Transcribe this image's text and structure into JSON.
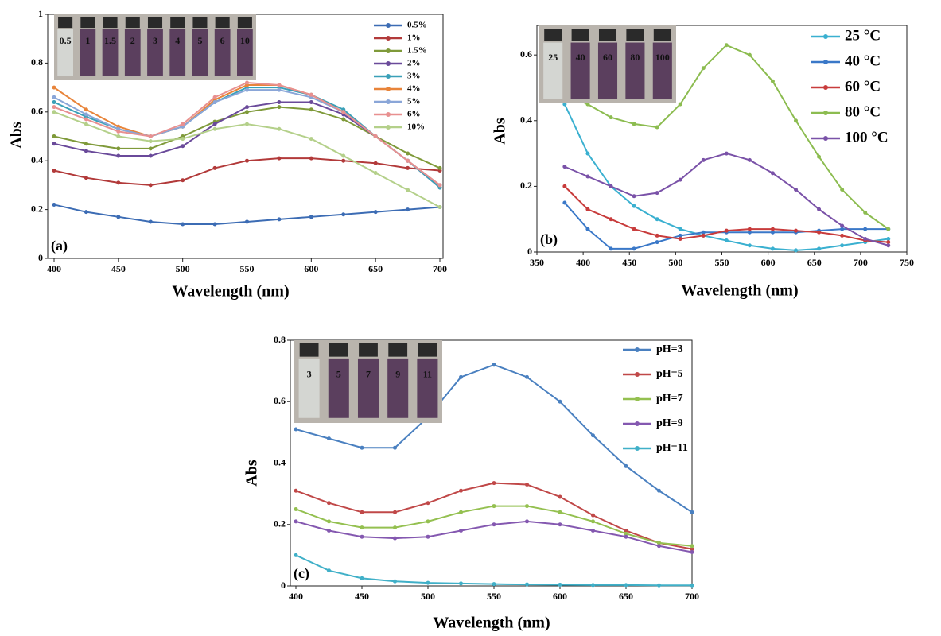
{
  "chart_data": [
    {
      "type": "line",
      "panel_label": "(a)",
      "x_label": "Wavelength (nm)",
      "y_label": "Abs",
      "inset_labels": [
        "0.5",
        "1",
        "1.5",
        "2",
        "3",
        "4",
        "5",
        "6",
        "10"
      ],
      "x": [
        400,
        425,
        450,
        475,
        500,
        525,
        550,
        575,
        600,
        625,
        650,
        675,
        700
      ],
      "xlim": [
        400,
        700
      ],
      "xticks": [
        400,
        450,
        500,
        550,
        600,
        650,
        700
      ],
      "ylim": [
        0,
        1
      ],
      "yticks": [
        0,
        0.2,
        0.4,
        0.6,
        0.8,
        1
      ],
      "series": [
        {
          "name": "0.5%",
          "color": "#3c6cb4",
          "values": [
            0.22,
            0.19,
            0.17,
            0.15,
            0.14,
            0.14,
            0.15,
            0.16,
            0.17,
            0.18,
            0.19,
            0.2,
            0.21
          ]
        },
        {
          "name": "1%",
          "color": "#b23a3a",
          "values": [
            0.36,
            0.33,
            0.31,
            0.3,
            0.32,
            0.37,
            0.4,
            0.41,
            0.41,
            0.4,
            0.39,
            0.37,
            0.36
          ]
        },
        {
          "name": "1.5%",
          "color": "#7f9a3a",
          "values": [
            0.5,
            0.47,
            0.45,
            0.45,
            0.5,
            0.56,
            0.6,
            0.62,
            0.61,
            0.57,
            0.5,
            0.43,
            0.37
          ]
        },
        {
          "name": "2%",
          "color": "#6a4a9a",
          "values": [
            0.47,
            0.44,
            0.42,
            0.42,
            0.46,
            0.55,
            0.62,
            0.64,
            0.64,
            0.59,
            0.5,
            0.4,
            0.29
          ]
        },
        {
          "name": "3%",
          "color": "#3aa0b8",
          "values": [
            0.64,
            0.58,
            0.53,
            0.5,
            0.54,
            0.64,
            0.7,
            0.7,
            0.67,
            0.61,
            0.5,
            0.4,
            0.29
          ]
        },
        {
          "name": "4%",
          "color": "#e8843a",
          "values": [
            0.7,
            0.61,
            0.54,
            0.5,
            0.54,
            0.65,
            0.71,
            0.71,
            0.67,
            0.6,
            0.5,
            0.4,
            0.3
          ]
        },
        {
          "name": "5%",
          "color": "#8aa6d8",
          "values": [
            0.66,
            0.59,
            0.53,
            0.5,
            0.54,
            0.64,
            0.69,
            0.69,
            0.66,
            0.6,
            0.5,
            0.4,
            0.3
          ]
        },
        {
          "name": "6%",
          "color": "#e89090",
          "values": [
            0.62,
            0.57,
            0.52,
            0.5,
            0.55,
            0.66,
            0.72,
            0.71,
            0.67,
            0.6,
            0.5,
            0.4,
            0.3
          ]
        },
        {
          "name": "10%",
          "color": "#b4d08a",
          "values": [
            0.6,
            0.55,
            0.5,
            0.48,
            0.49,
            0.53,
            0.55,
            0.53,
            0.49,
            0.42,
            0.35,
            0.28,
            0.21
          ]
        }
      ]
    },
    {
      "type": "line",
      "panel_label": "(b)",
      "x_label": "Wavelength (nm)",
      "y_label": "Abs",
      "inset_labels": [
        "25",
        "40",
        "60",
        "80",
        "100"
      ],
      "x": [
        380,
        405,
        430,
        455,
        480,
        505,
        530,
        555,
        580,
        605,
        630,
        655,
        680,
        705,
        730
      ],
      "xlim": [
        350,
        750
      ],
      "xticks": [
        350,
        400,
        450,
        500,
        550,
        600,
        650,
        700,
        750
      ],
      "ylim": [
        0,
        0.69
      ],
      "yticks": [
        0,
        0.2,
        0.4,
        0.6
      ],
      "series": [
        {
          "name": "25 °C",
          "color": "#3ab0d0",
          "values": [
            0.45,
            0.3,
            0.2,
            0.14,
            0.1,
            0.07,
            0.05,
            0.035,
            0.02,
            0.01,
            0.005,
            0.01,
            0.02,
            0.03,
            0.04
          ]
        },
        {
          "name": "40 °C",
          "color": "#3a78c8",
          "values": [
            0.15,
            0.07,
            0.01,
            0.01,
            0.03,
            0.05,
            0.06,
            0.06,
            0.06,
            0.06,
            0.06,
            0.065,
            0.07,
            0.07,
            0.07
          ]
        },
        {
          "name": "60 °C",
          "color": "#c83c3c",
          "values": [
            0.2,
            0.13,
            0.1,
            0.07,
            0.05,
            0.04,
            0.05,
            0.065,
            0.07,
            0.07,
            0.065,
            0.06,
            0.05,
            0.035,
            0.03
          ]
        },
        {
          "name": "80 °C",
          "color": "#8cbc50",
          "values": [
            0.48,
            0.45,
            0.41,
            0.39,
            0.38,
            0.45,
            0.56,
            0.63,
            0.6,
            0.52,
            0.4,
            0.29,
            0.19,
            0.12,
            0.07
          ]
        },
        {
          "name": "100 °C",
          "color": "#7a52a8",
          "values": [
            0.26,
            0.23,
            0.2,
            0.17,
            0.18,
            0.22,
            0.28,
            0.3,
            0.28,
            0.24,
            0.19,
            0.13,
            0.08,
            0.04,
            0.02
          ]
        }
      ]
    },
    {
      "type": "line",
      "panel_label": "(c)",
      "x_label": "Wavelength (nm)",
      "y_label": "Abs",
      "inset_labels": [
        "3",
        "5",
        "7",
        "9",
        "11"
      ],
      "x": [
        400,
        425,
        450,
        475,
        500,
        525,
        550,
        575,
        600,
        625,
        650,
        675,
        700
      ],
      "xlim": [
        400,
        700
      ],
      "xticks": [
        400,
        450,
        500,
        550,
        600,
        650,
        700
      ],
      "ylim": [
        0,
        0.8
      ],
      "yticks": [
        0,
        0.2,
        0.4,
        0.6,
        0.8
      ],
      "series": [
        {
          "name": "pH=3",
          "color": "#4a80c0",
          "values": [
            0.51,
            0.48,
            0.45,
            0.45,
            0.55,
            0.68,
            0.72,
            0.68,
            0.6,
            0.49,
            0.39,
            0.31,
            0.24
          ]
        },
        {
          "name": "pH=5",
          "color": "#c04848",
          "values": [
            0.31,
            0.27,
            0.24,
            0.24,
            0.27,
            0.31,
            0.335,
            0.33,
            0.29,
            0.23,
            0.18,
            0.14,
            0.12
          ]
        },
        {
          "name": "pH=7",
          "color": "#94c050",
          "values": [
            0.25,
            0.21,
            0.19,
            0.19,
            0.21,
            0.24,
            0.26,
            0.26,
            0.24,
            0.21,
            0.17,
            0.14,
            0.13
          ]
        },
        {
          "name": "pH=9",
          "color": "#8458b0",
          "values": [
            0.21,
            0.18,
            0.16,
            0.155,
            0.16,
            0.18,
            0.2,
            0.21,
            0.2,
            0.18,
            0.16,
            0.13,
            0.11
          ]
        },
        {
          "name": "pH=11",
          "color": "#40b0c8",
          "values": [
            0.1,
            0.05,
            0.025,
            0.015,
            0.01,
            0.008,
            0.006,
            0.005,
            0.004,
            0.003,
            0.003,
            0.002,
            0.002
          ]
        }
      ]
    }
  ]
}
